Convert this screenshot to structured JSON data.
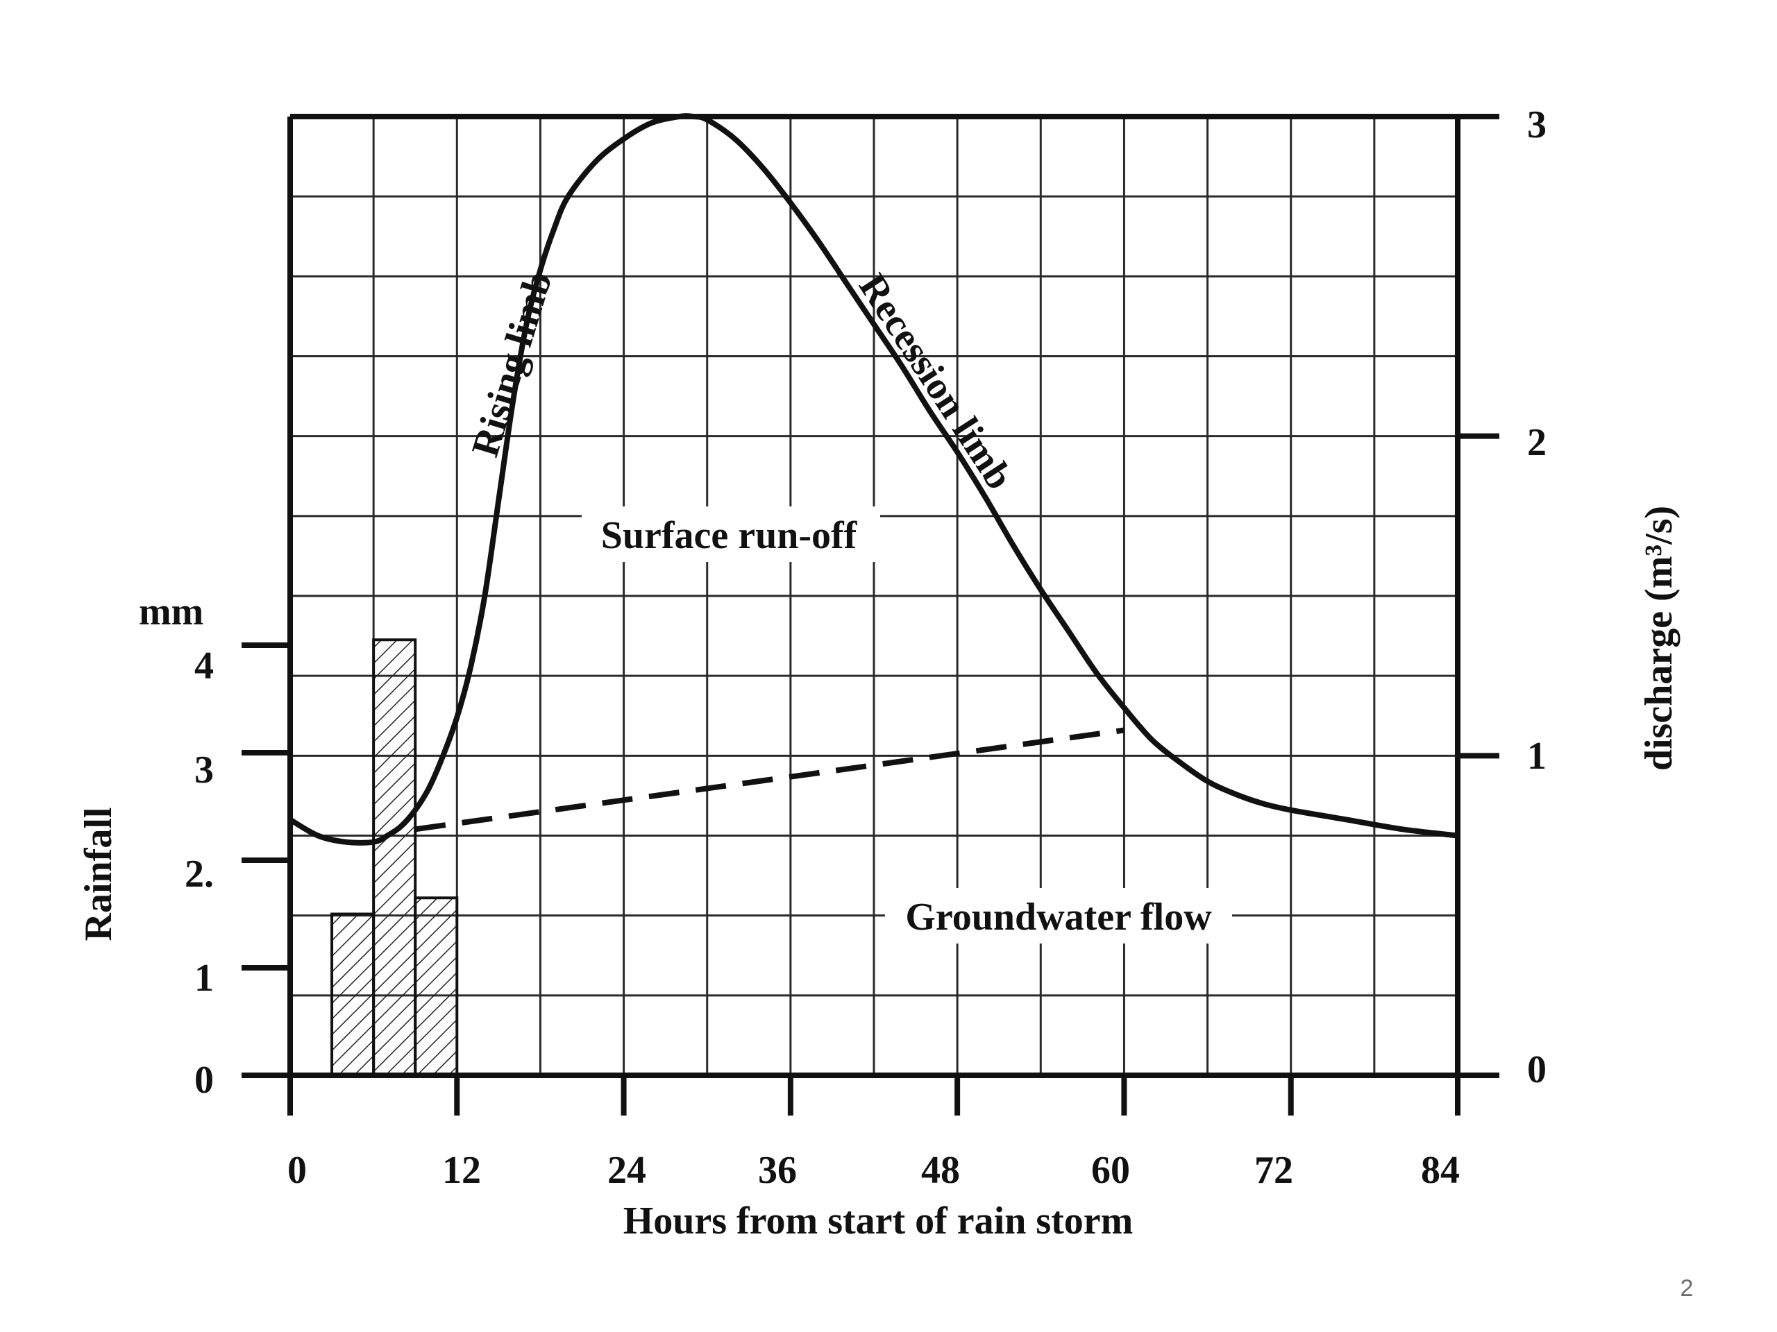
{
  "chart_data": {
    "type": "line",
    "x_axis": {
      "label": "Hours from start of rain storm",
      "range": [
        0,
        84
      ],
      "ticks": [
        0,
        12,
        24,
        36,
        48,
        60,
        72,
        84
      ],
      "tick_labels": [
        "0",
        "12",
        "24",
        "36",
        "48",
        "60",
        "72",
        "84"
      ]
    },
    "y_axis_left": {
      "label": "Rainfall",
      "unit": "mm",
      "range": [
        0,
        4
      ],
      "ticks": [
        0,
        1,
        2,
        3,
        4
      ],
      "tick_labels": [
        "0",
        "1",
        "2.",
        "3",
        "4"
      ]
    },
    "y_axis_right": {
      "label": "discharge (m³/s)",
      "range": [
        0,
        3
      ],
      "ticks": [
        0,
        1,
        2,
        3
      ],
      "tick_labels": [
        "0",
        "1",
        "2",
        "3"
      ]
    },
    "grid": true,
    "grid_step": {
      "x_hours": 6,
      "y_discharge": 0.25
    },
    "rainfall_bars": [
      {
        "x_start": 3,
        "x_end": 6,
        "rainfall_mm": 1.5
      },
      {
        "x_start": 6,
        "x_end": 9,
        "rainfall_mm": 4.05
      },
      {
        "x_start": 9,
        "x_end": 12,
        "rainfall_mm": 1.65
      }
    ],
    "series": [
      {
        "style": "solid",
        "x": [
          0,
          2,
          4,
          6,
          7,
          8,
          9,
          10,
          11,
          12,
          13,
          14,
          15,
          16,
          17,
          18,
          19,
          20,
          22,
          24,
          26,
          28,
          29,
          30,
          32,
          34,
          36,
          38,
          40,
          42,
          44,
          46,
          48,
          50,
          52,
          54,
          56,
          58,
          60,
          62,
          64,
          66,
          68,
          70,
          72,
          76,
          80,
          84
        ],
        "values": [
          0.8,
          0.75,
          0.73,
          0.73,
          0.75,
          0.78,
          0.83,
          0.9,
          1.0,
          1.12,
          1.28,
          1.5,
          1.8,
          2.1,
          2.35,
          2.52,
          2.65,
          2.75,
          2.86,
          2.93,
          2.98,
          3.0,
          3.0,
          2.99,
          2.93,
          2.84,
          2.73,
          2.61,
          2.48,
          2.35,
          2.22,
          2.08,
          1.95,
          1.81,
          1.66,
          1.52,
          1.39,
          1.26,
          1.15,
          1.05,
          0.98,
          0.92,
          0.88,
          0.85,
          0.83,
          0.8,
          0.77,
          0.75
        ]
      },
      {
        "style": "dashed",
        "x": [
          9,
          60
        ],
        "values": [
          0.77,
          1.08
        ]
      }
    ],
    "annotations": [
      "Rising limb",
      "Recession limb",
      "Surface run-off",
      "Groundwater flow"
    ]
  },
  "page": {
    "number": "2"
  }
}
